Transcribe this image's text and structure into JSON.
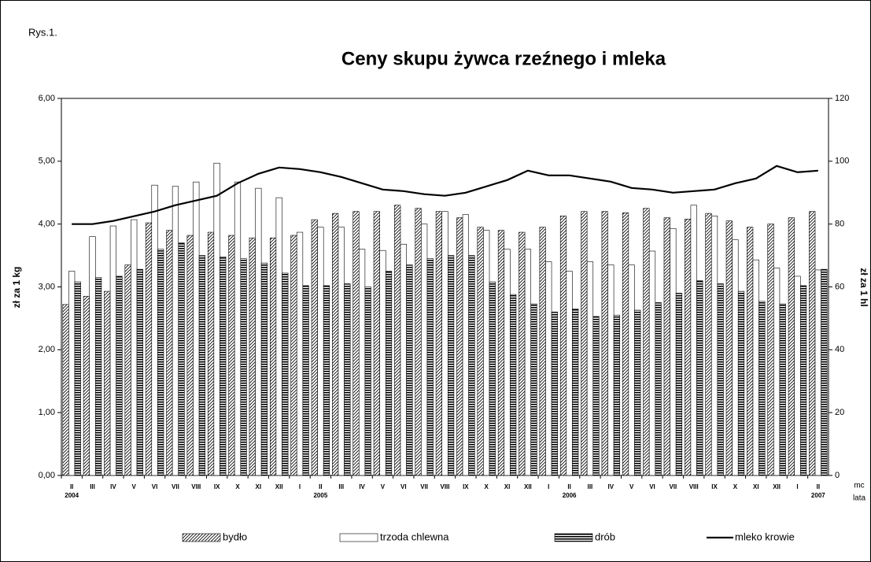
{
  "chart_data": {
    "type": "bar",
    "figure_label": "Rys.1.",
    "title": "Ceny skupu żywca rzeźnego i mleka",
    "ylabel": "zł za 1 kg",
    "y2label": "zł za 1 hl",
    "x_unit_label": "mc",
    "x_group_label": "lata",
    "categories": [
      "II",
      "III",
      "IV",
      "V",
      "VI",
      "VII",
      "VIII",
      "IX",
      "X",
      "XI",
      "XII",
      "I",
      "II",
      "III",
      "IV",
      "V",
      "VI",
      "VII",
      "VIII",
      "IX",
      "X",
      "XI",
      "XII",
      "I",
      "II",
      "III",
      "IV",
      "V",
      "VI",
      "VII",
      "VIII",
      "IX",
      "X",
      "XI",
      "XII",
      "I",
      "II"
    ],
    "years": [
      "2004",
      null,
      null,
      null,
      null,
      null,
      null,
      null,
      null,
      null,
      null,
      null,
      "2005",
      null,
      null,
      null,
      null,
      null,
      null,
      null,
      null,
      null,
      null,
      null,
      "2006",
      null,
      null,
      null,
      null,
      null,
      null,
      null,
      null,
      null,
      null,
      null,
      "2007"
    ],
    "series": [
      {
        "name": "bydło",
        "type": "bar",
        "pattern": "hatch",
        "color": "#000000",
        "values": [
          2.72,
          2.85,
          2.93,
          3.35,
          4.02,
          3.9,
          3.82,
          3.87,
          3.82,
          3.78,
          3.78,
          3.82,
          4.07,
          4.17,
          4.2,
          4.2,
          4.3,
          4.25,
          4.2,
          4.1,
          3.95,
          3.9,
          3.87,
          3.95,
          4.13,
          4.2,
          4.2,
          4.18,
          4.25,
          4.1,
          4.08,
          4.17,
          4.05,
          3.95,
          4.0,
          4.1,
          4.2
        ]
      },
      {
        "name": "trzoda chlewna",
        "type": "bar",
        "pattern": "none",
        "color": "#000000",
        "values": [
          3.25,
          3.8,
          3.97,
          4.07,
          4.62,
          4.6,
          4.67,
          4.97,
          4.67,
          4.57,
          4.42,
          3.87,
          3.95,
          3.95,
          3.6,
          3.58,
          3.68,
          4.0,
          4.2,
          4.15,
          3.9,
          3.6,
          3.6,
          3.4,
          3.25,
          3.4,
          3.35,
          3.35,
          3.57,
          3.93,
          4.3,
          4.13,
          3.75,
          3.43,
          3.3,
          3.17,
          3.27
        ]
      },
      {
        "name": "drób",
        "type": "bar",
        "pattern": "stripes",
        "color": "#000000",
        "values": [
          3.08,
          3.15,
          3.17,
          3.28,
          3.6,
          3.7,
          3.5,
          3.48,
          3.45,
          3.38,
          3.22,
          3.02,
          3.02,
          3.05,
          3.0,
          3.25,
          3.35,
          3.45,
          3.5,
          3.5,
          3.08,
          2.88,
          2.73,
          2.6,
          2.65,
          2.53,
          2.55,
          2.63,
          2.75,
          2.9,
          3.1,
          3.05,
          2.93,
          2.77,
          2.73,
          3.02,
          3.28
        ]
      },
      {
        "name": "mleko krowie",
        "type": "line",
        "axis": "y2",
        "color": "#000000",
        "values": [
          80,
          80,
          81,
          82.5,
          84,
          86,
          87.5,
          89,
          93,
          96,
          98,
          97.5,
          96.5,
          95,
          93,
          91,
          90.5,
          89.5,
          89,
          90,
          92,
          94,
          97,
          95.5,
          95.5,
          94.5,
          93.5,
          91.5,
          91,
          90,
          90.5,
          91,
          93,
          94.5,
          98.5,
          96.5,
          97
        ]
      }
    ],
    "ylim": [
      0,
      6
    ],
    "yticks": [
      {
        "value": 0,
        "label": "0,00"
      },
      {
        "value": 1,
        "label": "1,00"
      },
      {
        "value": 2,
        "label": "2,00"
      },
      {
        "value": 3,
        "label": "3,00"
      },
      {
        "value": 4,
        "label": "4,00"
      },
      {
        "value": 5,
        "label": "5,00"
      },
      {
        "value": 6,
        "label": "6,00"
      }
    ],
    "y2lim": [
      0,
      120
    ],
    "y2ticks": [
      0,
      20,
      40,
      60,
      80,
      100,
      120
    ],
    "grid": false
  }
}
